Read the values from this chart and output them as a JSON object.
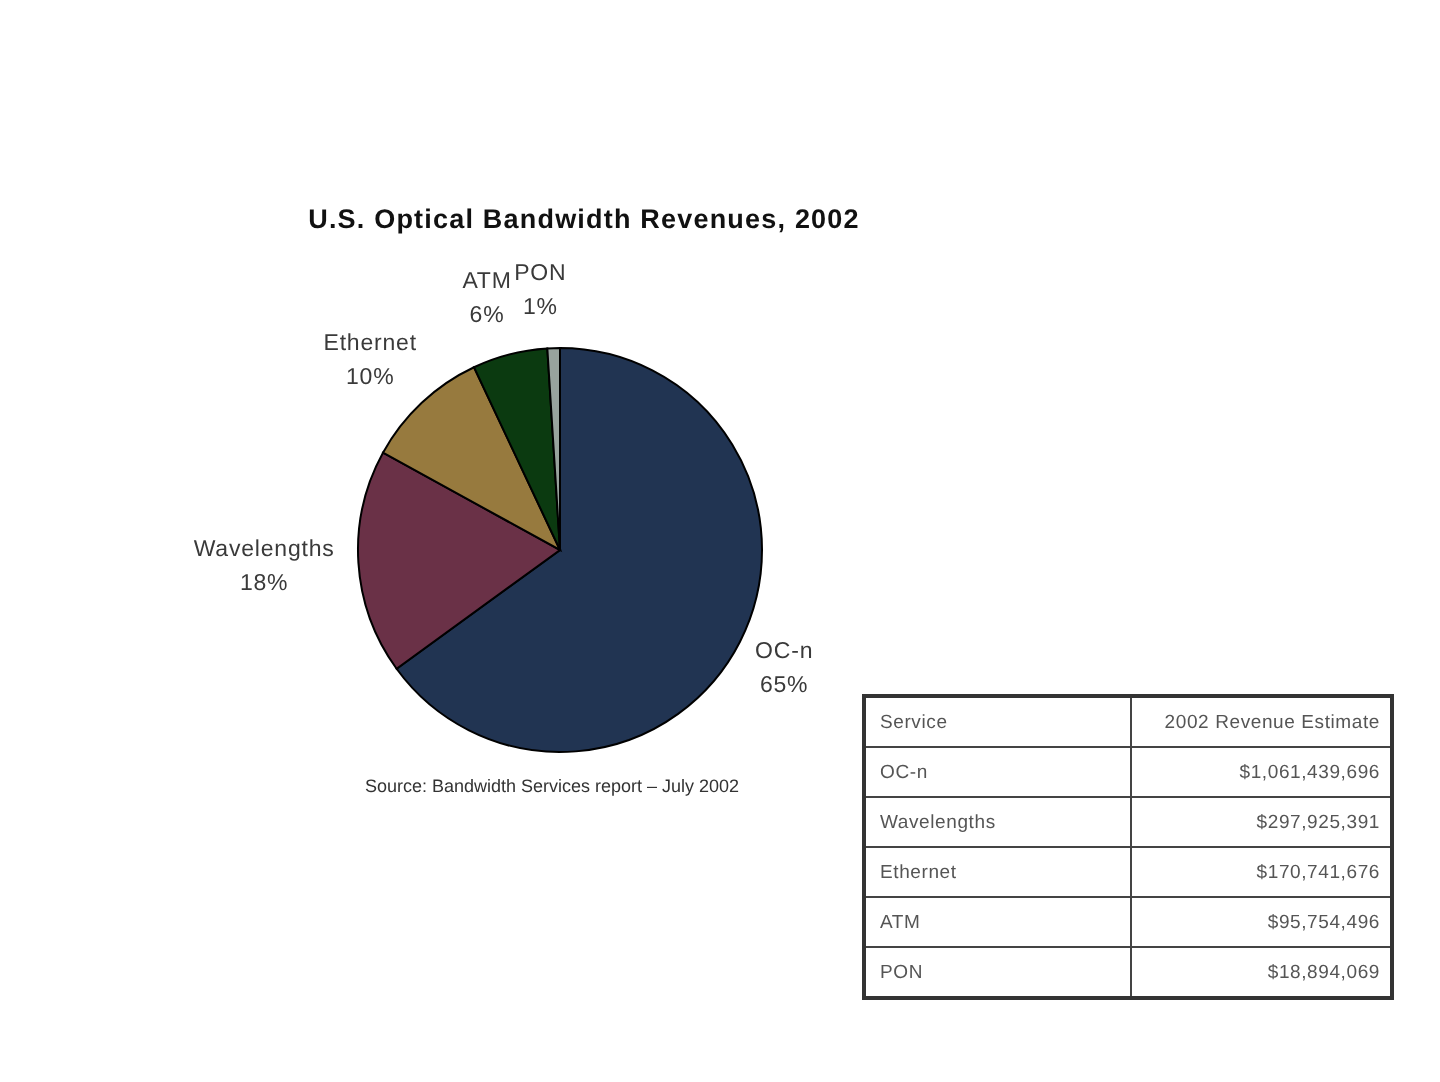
{
  "chart_data": [
    {
      "type": "pie",
      "title": "U.S. Optical Bandwidth Revenues, 2002",
      "categories": [
        "OC-n",
        "Wavelengths",
        "Ethernet",
        "ATM",
        "PON"
      ],
      "values": [
        65,
        18,
        10,
        6,
        1
      ],
      "value_labels": [
        "65%",
        "18%",
        "10%",
        "6%",
        "1%"
      ],
      "colors": [
        "#213452",
        "#6a3147",
        "#977a3e",
        "#0b3a10",
        "#98a39e"
      ],
      "annotations": [
        "Source: Bandwidth Services report – July 2002"
      ]
    },
    {
      "type": "other",
      "categories": [
        "OC-n",
        "Wavelengths",
        "Ethernet",
        "ATM",
        "PON"
      ],
      "value_labels": [
        "$1,061,439,696",
        "$297,925,391",
        "$170,741,676",
        "$95,754,496",
        "$18,894,069"
      ],
      "annotations": [
        "Service",
        "2002 Revenue Estimate"
      ]
    }
  ]
}
